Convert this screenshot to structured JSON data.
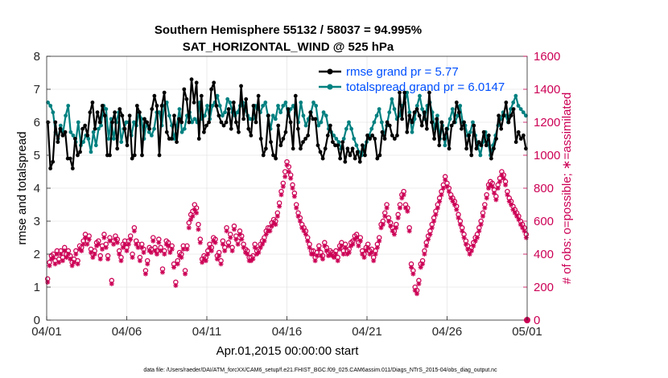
{
  "chart_data": {
    "type": "line",
    "title": "Southern Hemisphere 55132 / 58037 = 94.995%",
    "subtitle": "SAT_HORIZONTAL_WIND @ 525 hPa",
    "xlabel": "Apr.01,2015 00:00:00 start",
    "ylabel_left": "rmse and totalspread",
    "ylabel_right": "# of obs: o=possible; ∗=assimilated",
    "xlim": [
      0,
      30
    ],
    "ylim_left": [
      0,
      8
    ],
    "ylim_right": [
      0,
      1600
    ],
    "x_ticks": [
      0,
      5,
      10,
      15,
      20,
      25,
      30
    ],
    "x_tick_labels": [
      "04/01",
      "04/06",
      "04/11",
      "04/16",
      "04/21",
      "04/26",
      "05/01"
    ],
    "y_ticks_left": [
      0,
      1,
      2,
      3,
      4,
      5,
      6,
      7,
      8
    ],
    "y_ticks_right": [
      0,
      200,
      400,
      600,
      800,
      1000,
      1200,
      1400,
      1600
    ],
    "footnote": "data file: /Users/raeder/DAI/ATM_forcXX/CAM6_setup/f.e21.FHIST_BGC.f09_025.CAM6assim.011/Diags_NTrS_2015-04/obs_diag_output.nc",
    "colors": {
      "rmse": "#000000",
      "spread": "#008080",
      "obs": "#cc0055",
      "legend_text": "#0050ff",
      "grid": "#e6e6e6"
    },
    "legend": {
      "rmse": "rmse grand pr = 5.77",
      "spread": "totalspread grand pr = 6.0147"
    },
    "series": [
      {
        "name": "rmse",
        "axis": "left",
        "values": [
          6.0,
          4.6,
          4.8,
          6.0,
          5.4,
          5.8,
          5.6,
          5.7,
          4.9,
          4.9,
          4.6,
          5.5,
          5.0,
          5.1,
          5.8,
          5.9,
          5.6,
          6.3,
          6.6,
          5.8,
          6.3,
          6.0,
          6.5,
          6.2,
          5.0,
          5.0,
          6.0,
          6.3,
          5.2,
          6.4,
          6.2,
          5.8,
          5.3,
          6.2,
          4.9,
          5.0,
          6.5,
          6.3,
          5.0,
          6.1,
          6.0,
          5.8,
          6.4,
          6.8,
          6.5,
          5.0,
          6.5,
          6.9,
          5.7,
          5.5,
          5.5,
          6.2,
          5.4,
          6.1,
          6.0,
          7.0,
          6.7,
          6.0,
          7.3,
          6.6,
          7.2,
          5.5,
          6.8,
          5.7,
          5.9,
          6.0,
          7.0,
          7.2,
          6.5,
          6.2,
          6.0,
          5.9,
          6.0,
          6.4,
          5.8,
          6.6,
          6.0,
          5.7,
          7.1,
          6.1,
          6.7,
          5.8,
          5.6,
          6.5,
          6.0,
          6.8,
          5.5,
          5.0,
          5.2,
          6.2,
          5.4,
          5.0,
          4.9,
          5.9,
          5.3,
          5.5,
          5.7,
          6.4,
          6.0,
          5.2,
          6.8,
          5.8,
          5.2,
          5.4,
          5.5,
          5.6,
          6.3,
          6.1,
          6.1,
          5.3,
          5.1,
          4.9,
          5.2,
          5.6,
          5.9,
          5.4,
          5.3,
          5.3,
          4.9,
          5.4,
          4.8,
          5.2,
          5.0,
          5.2,
          4.9,
          5.1,
          4.8,
          5.3,
          5.0,
          5.6,
          5.5,
          5.6,
          5.5,
          4.9,
          5.0,
          5.7,
          5.5,
          6.0,
          5.9,
          5.6,
          5.5,
          5.6,
          6.9,
          6.1,
          6.9,
          5.7,
          6.2,
          6.0,
          6.3,
          6.4,
          6.2,
          5.9,
          6.3,
          5.8,
          6.9,
          6.0,
          5.5,
          6.1,
          5.3,
          6.0,
          5.5,
          5.8,
          5.2,
          5.9,
          6.0,
          6.6,
          6.3,
          5.8,
          6.0,
          5.2,
          5.6,
          5.0,
          5.9,
          5.2,
          5.4,
          5.3,
          5.7,
          5.3,
          5.6,
          4.9,
          5.2,
          5.5,
          6.2,
          5.8,
          6.2,
          6.6,
          6.0,
          6.2,
          6.4,
          5.4,
          5.7,
          5.5,
          5.6,
          5.2
        ]
      },
      {
        "name": "totalspread",
        "axis": "left",
        "values": [
          6.6,
          6.5,
          6.3,
          5.7,
          5.5,
          5.9,
          5.7,
          6.2,
          6.5,
          5.7,
          5.6,
          5.4,
          6.0,
          5.3,
          5.4,
          5.6,
          5.5,
          5.1,
          5.7,
          5.3,
          5.8,
          5.9,
          6.5,
          6.4,
          5.5,
          6.1,
          5.5,
          6.0,
          6.3,
          5.4,
          5.8,
          6.0,
          6.0,
          5.6,
          6.0,
          5.9,
          6.3,
          6.1,
          5.5,
          6.0,
          5.7,
          5.6,
          5.8,
          6.3,
          6.3,
          5.9,
          6.5,
          6.6,
          6.2,
          5.9,
          5.5,
          5.9,
          6.4,
          5.7,
          5.8,
          6.2,
          6.3,
          6.0,
          6.1,
          6.0,
          6.6,
          6.1,
          6.2,
          6.5,
          6.1,
          6.5,
          6.6,
          6.8,
          6.5,
          6.2,
          6.3,
          6.7,
          6.6,
          6.3,
          6.2,
          6.3,
          6.5,
          6.6,
          6.4,
          6.2,
          6.1,
          6.1,
          6.5,
          6.4,
          6.3,
          6.5,
          6.6,
          6.2,
          5.8,
          6.2,
          6.1,
          6.5,
          6.3,
          6.5,
          6.6,
          6.2,
          6.4,
          6.5,
          6.3,
          6.0,
          6.6,
          6.2,
          5.9,
          6.1,
          6.3,
          6.6,
          6.5,
          5.9,
          6.0,
          6.3,
          6.2,
          5.8,
          5.7,
          5.6,
          5.5,
          5.4,
          5.2,
          5.5,
          5.8,
          6.0,
          5.8,
          5.5,
          5.3,
          5.1,
          5.0,
          5.2,
          5.4,
          5.6,
          5.8,
          6.0,
          6.2,
          6.4,
          6.0,
          5.6,
          5.9,
          6.3,
          6.7,
          6.4,
          6.1,
          6.2,
          6.5,
          6.6,
          6.9,
          6.3,
          5.7,
          6.1,
          6.5,
          6.8,
          6.4,
          6.1,
          6.5,
          6.6,
          6.3,
          5.8,
          6.2,
          5.5,
          5.9,
          5.3,
          5.8,
          6.1,
          6.4,
          6.0,
          6.2,
          6.5,
          6.0,
          5.9,
          5.6,
          5.7,
          6.0,
          5.6,
          5.3,
          5.0,
          5.4,
          5.7,
          5.4,
          5.0,
          5.3,
          5.6,
          5.9,
          6.1,
          6.3,
          6.2,
          6.0,
          6.4,
          6.6,
          6.8,
          6.5,
          6.4,
          6.3,
          6.2
        ]
      },
      {
        "name": "obs possible",
        "axis": "right",
        "values": [
          250,
          350,
          390,
          400,
          360,
          420,
          370,
          420,
          380,
          440,
          400,
          420,
          390,
          350,
          370,
          420,
          360,
          450,
          440,
          480,
          520,
          480,
          510,
          430,
          400,
          420,
          470,
          480,
          390,
          450,
          520,
          460,
          390,
          500,
          240,
          480,
          510,
          490,
          420,
          380,
          460,
          480,
          440,
          480,
          510,
          400,
          560,
          480,
          460,
          380,
          460,
          430,
          300,
          360,
          440,
          430,
          500,
          440,
          420,
          490,
          440,
          310,
          420,
          480,
          470,
          430,
          450,
          340,
          230,
          360,
          410,
          400,
          450,
          300,
          450,
          590,
          640,
          660,
          700,
          680,
          580,
          490,
          370,
          390,
          380,
          420,
          460,
          440,
          500,
          490,
          390,
          410,
          360,
          480,
          440,
          560,
          470,
          520,
          440,
          570,
          510,
          480,
          540,
          510,
          460,
          430,
          420,
          380,
          380,
          390,
          460,
          420,
          430,
          460,
          480,
          500,
          540,
          560,
          560,
          590,
          610,
          600,
          650,
          710,
          780,
          830,
          900,
          960,
          930,
          880,
          820,
          770,
          700,
          650,
          620,
          580,
          560,
          540,
          500,
          460,
          420,
          420,
          380,
          410,
          450,
          410,
          390,
          470,
          440,
          410,
          420,
          410,
          400,
          420,
          380,
          450,
          470,
          420,
          460,
          420,
          430,
          470,
          480,
          510,
          520,
          470,
          500,
          420,
          400,
          440,
          460,
          420,
          430,
          380,
          420,
          460,
          500,
          580,
          600,
          650,
          700,
          620,
          590,
          560,
          540,
          580,
          640,
          700,
          760,
          780,
          700,
          680,
          560,
          340,
          300,
          200,
          180,
          240,
          340,
          360,
          420,
          470,
          510,
          540,
          580,
          620,
          660,
          700,
          740,
          780,
          820,
          870,
          830,
          800,
          760,
          740,
          720,
          690,
          640,
          600,
          560,
          520,
          480,
          450,
          420,
          440,
          470,
          500,
          520,
          560,
          600,
          650,
          700,
          760,
          820,
          840,
          830,
          790,
          750,
          820,
          860,
          900,
          880,
          840,
          780,
          740,
          720,
          690,
          670,
          650,
          630,
          600,
          580,
          560,
          520
        ]
      },
      {
        "name": "obs assimilated",
        "axis": "right",
        "values": [
          230,
          330,
          370,
          380,
          340,
          400,
          350,
          400,
          360,
          420,
          380,
          400,
          370,
          330,
          350,
          400,
          340,
          430,
          420,
          460,
          500,
          460,
          490,
          410,
          380,
          400,
          450,
          460,
          370,
          430,
          500,
          440,
          370,
          480,
          220,
          460,
          490,
          470,
          400,
          360,
          440,
          460,
          420,
          460,
          490,
          380,
          540,
          460,
          440,
          360,
          440,
          410,
          280,
          340,
          420,
          410,
          480,
          420,
          400,
          470,
          420,
          290,
          400,
          460,
          450,
          410,
          430,
          320,
          210,
          340,
          390,
          380,
          430,
          280,
          430,
          560,
          610,
          630,
          670,
          650,
          550,
          470,
          350,
          370,
          360,
          400,
          440,
          420,
          480,
          470,
          370,
          390,
          340,
          460,
          420,
          540,
          450,
          500,
          420,
          550,
          490,
          460,
          520,
          490,
          440,
          410,
          400,
          360,
          360,
          370,
          440,
          400,
          410,
          440,
          460,
          480,
          520,
          540,
          540,
          570,
          590,
          580,
          630,
          690,
          760,
          810,
          870,
          940,
          900,
          860,
          800,
          750,
          680,
          630,
          600,
          560,
          540,
          520,
          480,
          440,
          400,
          400,
          360,
          390,
          430,
          390,
          370,
          450,
          420,
          390,
          400,
          390,
          380,
          400,
          360,
          430,
          450,
          400,
          440,
          400,
          410,
          450,
          460,
          490,
          500,
          450,
          480,
          400,
          380,
          420,
          440,
          400,
          410,
          360,
          400,
          440,
          480,
          560,
          580,
          630,
          680,
          600,
          570,
          540,
          520,
          560,
          620,
          680,
          740,
          760,
          680,
          660,
          540,
          320,
          280,
          180,
          160,
          220,
          320,
          340,
          400,
          450,
          490,
          520,
          560,
          600,
          640,
          680,
          720,
          760,
          800,
          850,
          810,
          780,
          740,
          720,
          700,
          670,
          620,
          580,
          540,
          500,
          460,
          430,
          400,
          420,
          450,
          480,
          500,
          540,
          580,
          630,
          680,
          740,
          800,
          820,
          810,
          770,
          730,
          800,
          840,
          880,
          860,
          820,
          760,
          720,
          700,
          670,
          650,
          630,
          610,
          580,
          560,
          540,
          500
        ]
      }
    ],
    "last_point_marker_value": 0
  }
}
